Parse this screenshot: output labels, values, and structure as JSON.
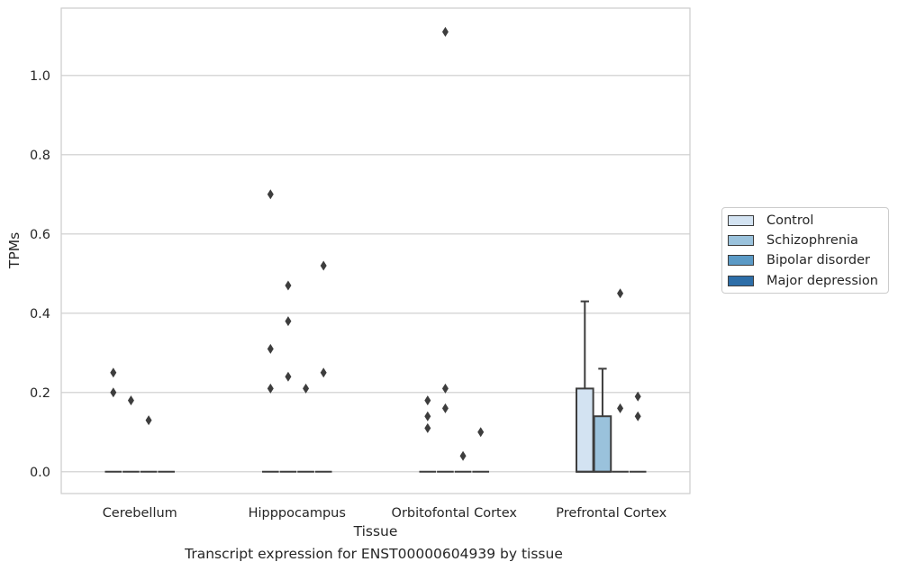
{
  "chart_data": {
    "type": "box",
    "xlabel": "Tissue",
    "ylabel": "TPMs",
    "caption": "Transcript expression for ENST00000604939 by tissue",
    "categories": [
      "Cerebellum",
      "Hipppocampus",
      "Orbitofontal Cortex",
      "Prefrontal Cortex"
    ],
    "ylim": [
      -0.055,
      1.17
    ],
    "yticks": [
      "0.0",
      "0.2",
      "0.4",
      "0.6",
      "0.8",
      "1.0"
    ],
    "grid": "horizontal",
    "legend_placement": "right",
    "series": [
      {
        "name": "Control",
        "color": "#d3e3f2",
        "boxes": [
          {
            "min": 0,
            "q1": 0,
            "median": 0,
            "q3": 0,
            "max": 0,
            "outliers": [
              0.25,
              0.2
            ]
          },
          {
            "min": 0,
            "q1": 0,
            "median": 0,
            "q3": 0,
            "max": 0,
            "outliers": [
              0.7,
              0.31,
              0.21
            ]
          },
          {
            "min": 0,
            "q1": 0,
            "median": 0,
            "q3": 0,
            "max": 0,
            "outliers": [
              0.18,
              0.14,
              0.11
            ]
          },
          {
            "min": 0,
            "q1": 0,
            "median": 0,
            "q3": 0.21,
            "max": 0.43,
            "outliers": []
          }
        ]
      },
      {
        "name": "Schizophrenia",
        "color": "#9ac2dc",
        "boxes": [
          {
            "min": 0,
            "q1": 0,
            "median": 0,
            "q3": 0,
            "max": 0,
            "outliers": [
              0.18
            ]
          },
          {
            "min": 0,
            "q1": 0,
            "median": 0,
            "q3": 0,
            "max": 0,
            "outliers": [
              0.47,
              0.38,
              0.24
            ]
          },
          {
            "min": 0,
            "q1": 0,
            "median": 0,
            "q3": 0,
            "max": 0,
            "outliers": [
              1.11,
              0.21,
              0.16
            ]
          },
          {
            "min": 0,
            "q1": 0,
            "median": 0,
            "q3": 0.14,
            "max": 0.26,
            "outliers": []
          }
        ]
      },
      {
        "name": "Bipolar disorder",
        "color": "#5b9ac6",
        "boxes": [
          {
            "min": 0,
            "q1": 0,
            "median": 0,
            "q3": 0,
            "max": 0,
            "outliers": [
              0.13
            ]
          },
          {
            "min": 0,
            "q1": 0,
            "median": 0,
            "q3": 0,
            "max": 0,
            "outliers": [
              0.21
            ]
          },
          {
            "min": 0,
            "q1": 0,
            "median": 0,
            "q3": 0,
            "max": 0,
            "outliers": [
              0.04
            ]
          },
          {
            "min": 0,
            "q1": 0,
            "median": 0,
            "q3": 0,
            "max": 0,
            "outliers": [
              0.45,
              0.16
            ]
          }
        ]
      },
      {
        "name": "Major depression",
        "color": "#2d6ea8",
        "boxes": [
          {
            "min": 0,
            "q1": 0,
            "median": 0,
            "q3": 0,
            "max": 0,
            "outliers": []
          },
          {
            "min": 0,
            "q1": 0,
            "median": 0,
            "q3": 0,
            "max": 0,
            "outliers": [
              0.52,
              0.25
            ]
          },
          {
            "min": 0,
            "q1": 0,
            "median": 0,
            "q3": 0,
            "max": 0,
            "outliers": [
              0.1
            ]
          },
          {
            "min": 0,
            "q1": 0,
            "median": 0,
            "q3": 0,
            "max": 0,
            "outliers": [
              0.19,
              0.14
            ]
          }
        ]
      }
    ]
  }
}
